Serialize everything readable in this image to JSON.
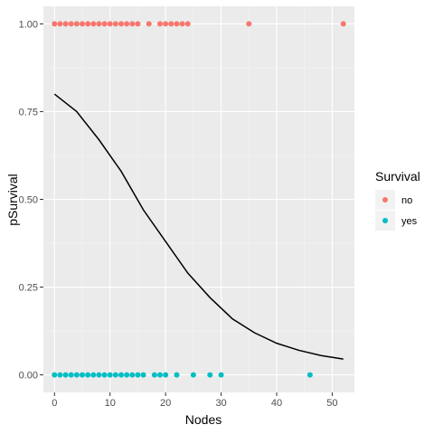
{
  "chart_data": {
    "type": "scatter",
    "xlabel": "Nodes",
    "ylabel": "pSurvival",
    "xlim": [
      -2,
      54
    ],
    "ylim": [
      -0.05,
      1.05
    ],
    "x_ticks": [
      0,
      10,
      20,
      30,
      40,
      50
    ],
    "y_ticks": [
      0.0,
      0.25,
      0.5,
      0.75,
      1.0
    ],
    "x_tick_labels": [
      "0",
      "10",
      "20",
      "30",
      "40",
      "50"
    ],
    "y_tick_labels": [
      "0.00",
      "0.25",
      "0.50",
      "0.75",
      "1.00"
    ],
    "grid": true,
    "legend": {
      "title": "Survival",
      "position": "right",
      "entries": [
        {
          "label": "no",
          "color": "#F8766D"
        },
        {
          "label": "yes",
          "color": "#00BFC4"
        }
      ]
    },
    "series": [
      {
        "name": "no",
        "color": "#F8766D",
        "points": [
          [
            0,
            1
          ],
          [
            1,
            1
          ],
          [
            2,
            1
          ],
          [
            3,
            1
          ],
          [
            4,
            1
          ],
          [
            5,
            1
          ],
          [
            6,
            1
          ],
          [
            7,
            1
          ],
          [
            8,
            1
          ],
          [
            9,
            1
          ],
          [
            10,
            1
          ],
          [
            11,
            1
          ],
          [
            12,
            1
          ],
          [
            13,
            1
          ],
          [
            14,
            1
          ],
          [
            15,
            1
          ],
          [
            17,
            1
          ],
          [
            19,
            1
          ],
          [
            20,
            1
          ],
          [
            21,
            1
          ],
          [
            22,
            1
          ],
          [
            23,
            1
          ],
          [
            24,
            1
          ],
          [
            35,
            1
          ],
          [
            52,
            1
          ]
        ]
      },
      {
        "name": "yes",
        "color": "#00BFC4",
        "points": [
          [
            0,
            0
          ],
          [
            1,
            0
          ],
          [
            2,
            0
          ],
          [
            3,
            0
          ],
          [
            4,
            0
          ],
          [
            5,
            0
          ],
          [
            6,
            0
          ],
          [
            7,
            0
          ],
          [
            8,
            0
          ],
          [
            9,
            0
          ],
          [
            10,
            0
          ],
          [
            11,
            0
          ],
          [
            12,
            0
          ],
          [
            13,
            0
          ],
          [
            14,
            0
          ],
          [
            15,
            0
          ],
          [
            16,
            0
          ],
          [
            18,
            0
          ],
          [
            19,
            0
          ],
          [
            20,
            0
          ],
          [
            22,
            0
          ],
          [
            25,
            0
          ],
          [
            28,
            0
          ],
          [
            30,
            0
          ],
          [
            46,
            0
          ]
        ]
      }
    ],
    "fit_curve": {
      "type": "logistic",
      "color": "#000000",
      "x_range": [
        0,
        52
      ],
      "points": [
        [
          0,
          0.8
        ],
        [
          4,
          0.75
        ],
        [
          8,
          0.67
        ],
        [
          12,
          0.58
        ],
        [
          16,
          0.47
        ],
        [
          20,
          0.38
        ],
        [
          24,
          0.29
        ],
        [
          28,
          0.22
        ],
        [
          32,
          0.16
        ],
        [
          36,
          0.12
        ],
        [
          40,
          0.09
        ],
        [
          44,
          0.07
        ],
        [
          48,
          0.055
        ],
        [
          52,
          0.045
        ]
      ]
    }
  }
}
